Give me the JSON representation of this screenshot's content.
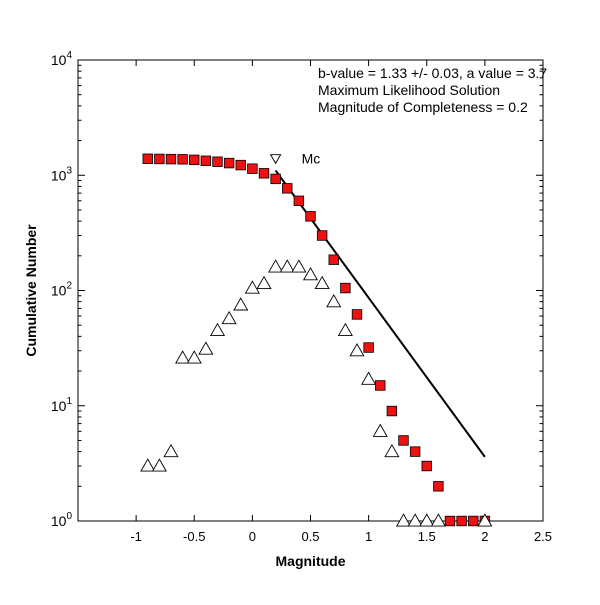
{
  "chart_data": {
    "type": "scatter",
    "xlabel": "Magnitude",
    "ylabel": "Cumulative Number",
    "xlim": [
      -1.5,
      2.5
    ],
    "ylim": [
      1,
      10000
    ],
    "yscale": "log",
    "grid": false,
    "xticks": [
      "-1",
      "-0.5",
      "0",
      "0.5",
      "1",
      "1.5",
      "2",
      "2.5"
    ],
    "xtick_values": [
      -1,
      -0.5,
      0,
      0.5,
      1,
      1.5,
      2,
      2.5
    ],
    "yticks": [
      {
        "value": 1,
        "base": "10",
        "exp": "0"
      },
      {
        "value": 10,
        "base": "10",
        "exp": "1"
      },
      {
        "value": 100,
        "base": "10",
        "exp": "2"
      },
      {
        "value": 1000,
        "base": "10",
        "exp": "3"
      },
      {
        "value": 10000,
        "base": "10",
        "exp": "4"
      }
    ],
    "annotations": [
      "b-value = 1.33 +/- 0.03,  a value = 3.7",
      "Maximum Likelihood Solution",
      "Magnitude of Completeness = 0.2"
    ],
    "mc_label": "Mc",
    "mc_marker": {
      "x": 0.2,
      "y": 1400
    },
    "series": [
      {
        "marker": "square",
        "color": "#ee1111",
        "x": [
          -0.9,
          -0.8,
          -0.7,
          -0.6,
          -0.5,
          -0.4,
          -0.3,
          -0.2,
          -0.1,
          0.0,
          0.1,
          0.2,
          0.3,
          0.4,
          0.5,
          0.6,
          0.7,
          0.8,
          0.9,
          1.0,
          1.1,
          1.2,
          1.3,
          1.4,
          1.5,
          1.6,
          1.7,
          1.8,
          1.9,
          2.0
        ],
        "y": [
          1390,
          1385,
          1380,
          1375,
          1360,
          1335,
          1310,
          1275,
          1225,
          1140,
          1040,
          930,
          770,
          600,
          440,
          300,
          185,
          105,
          62,
          32,
          15,
          9,
          5,
          4,
          3,
          2,
          1,
          1,
          1,
          1
        ]
      },
      {
        "marker": "triangle-up",
        "color": "#ffffff",
        "x": [
          -0.9,
          -0.8,
          -0.7,
          -0.6,
          -0.5,
          -0.4,
          -0.3,
          -0.2,
          -0.1,
          0.0,
          0.1,
          0.2,
          0.3,
          0.4,
          0.5,
          0.6,
          0.7,
          0.8,
          0.9,
          1.0,
          1.1,
          1.2,
          1.3,
          1.4,
          1.5,
          1.6,
          2.0
        ],
        "y": [
          3,
          3,
          4,
          26,
          26,
          31,
          45,
          57,
          75,
          105,
          115,
          160,
          160,
          160,
          137,
          115,
          80,
          45,
          30,
          17,
          6,
          4,
          1,
          1,
          1,
          1,
          1
        ]
      }
    ],
    "fit_line": {
      "x": [
        0.2,
        2.0
      ],
      "y": [
        1100,
        3.6
      ]
    }
  }
}
